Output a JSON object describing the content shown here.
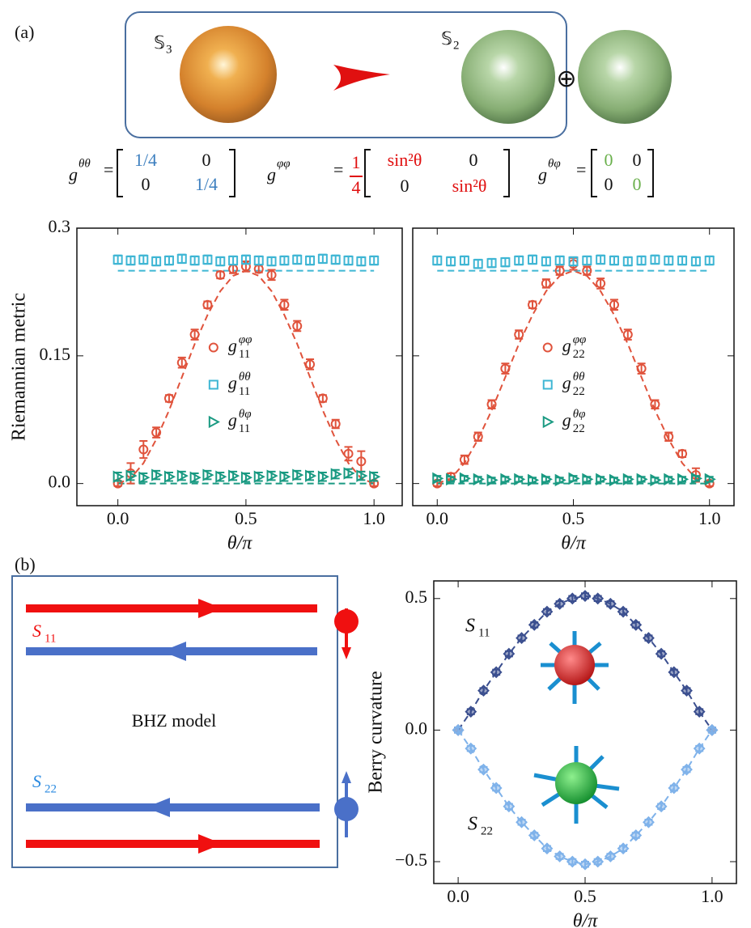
{
  "panel_labels": [
    "(a)",
    "(b)"
  ],
  "spheres": {
    "from": {
      "base": "𝕊",
      "sub": "3"
    },
    "to": {
      "base": "𝕊",
      "sub": "2"
    },
    "plus": "⊕"
  },
  "equations": [
    {
      "symbol": "g",
      "sup": "θθ",
      "equals": "=",
      "matrix": [
        "1/4",
        "0",
        "0",
        "1/4"
      ]
    },
    {
      "symbol": "g",
      "sup": "φφ",
      "equals": "=",
      "prefactor": [
        "1",
        "4"
      ],
      "matrix": [
        "sin²θ",
        "0",
        "0",
        "sin²θ"
      ]
    },
    {
      "symbol": "g",
      "sup": "θφ",
      "equals": "=",
      "matrix": [
        "0",
        "0",
        "0",
        "0"
      ]
    }
  ],
  "bhz": {
    "label": "BHZ model",
    "s11": {
      "base": "S",
      "sub": "11"
    },
    "s22": {
      "base": "S",
      "sub": "22"
    }
  },
  "chart_data": [
    {
      "type": "scatter",
      "ylabel": "Riemannian metric",
      "xlabel": "θ/π",
      "xlim": [
        -0.16,
        1.11
      ],
      "ylim": [
        -0.026,
        0.3
      ],
      "xticks": [
        {
          "value": 0,
          "label": "0.0"
        },
        0.5,
        {
          "value": 1,
          "label": "1.0"
        }
      ],
      "yticks": [
        {
          "value": 0,
          "label": "0.0"
        },
        0.15,
        0.3
      ],
      "legend": "center",
      "x": [
        0,
        0.05,
        0.1,
        0.15,
        0.2,
        0.25,
        0.3,
        0.35,
        0.4,
        0.45,
        0.5,
        0.55,
        0.6,
        0.65,
        0.7,
        0.75,
        0.8,
        0.85,
        0.9,
        0.95,
        1.0
      ],
      "series": [
        {
          "style": "dashed",
          "color": "#e0533c",
          "values": [
            0,
            0.006,
            0.024,
            0.052,
            0.086,
            0.125,
            0.164,
            0.198,
            0.226,
            0.244,
            0.25,
            0.244,
            0.226,
            0.198,
            0.164,
            0.125,
            0.086,
            0.052,
            0.024,
            0.006,
            0
          ]
        },
        {
          "style": "dashed",
          "color": "#3fb6d4",
          "values": [
            0.25,
            0.25,
            0.25,
            0.25,
            0.25,
            0.25,
            0.25,
            0.25,
            0.25,
            0.25,
            0.25,
            0.25,
            0.25,
            0.25,
            0.25,
            0.25,
            0.25,
            0.25,
            0.25,
            0.25,
            0.25
          ]
        },
        {
          "style": "dashed",
          "color": "#1a9a82",
          "values": [
            0,
            0,
            0,
            0,
            0,
            0,
            0,
            0,
            0,
            0,
            0,
            0,
            0,
            0,
            0,
            0,
            0,
            0,
            0,
            0,
            0
          ]
        },
        {
          "name": "g",
          "name_sub": "11",
          "name_sup": "φφ",
          "marker": "circle",
          "color": "#e0533c",
          "values": [
            0,
            0.012,
            0.04,
            0.06,
            0.1,
            0.142,
            0.175,
            0.21,
            0.245,
            0.252,
            0.255,
            0.252,
            0.245,
            0.21,
            0.185,
            0.14,
            0.1,
            0.07,
            0.035,
            0.026,
            0
          ],
          "errors": [
            0.003,
            0.012,
            0.01,
            0.006,
            0.004,
            0.006,
            0.006,
            0.004,
            0.004,
            0.005,
            0.006,
            0.004,
            0.006,
            0.006,
            0.006,
            0.006,
            0.004,
            0.005,
            0.008,
            0.012,
            0.003
          ]
        },
        {
          "name": "g",
          "name_sub": "11",
          "name_sup": "θθ",
          "marker": "square",
          "color": "#3fb6d4",
          "values": [
            0.263,
            0.262,
            0.263,
            0.261,
            0.262,
            0.264,
            0.262,
            0.263,
            0.261,
            0.262,
            0.263,
            0.262,
            0.261,
            0.262,
            0.263,
            0.262,
            0.264,
            0.263,
            0.262,
            0.261,
            0.262
          ],
          "errors": [
            0.005,
            0.005,
            0.005,
            0.005,
            0.005,
            0.005,
            0.005,
            0.005,
            0.005,
            0.005,
            0.005,
            0.005,
            0.005,
            0.005,
            0.005,
            0.005,
            0.005,
            0.005,
            0.005,
            0.005,
            0.005
          ]
        },
        {
          "name": "g",
          "name_sub": "11",
          "name_sup": "θφ",
          "marker": "triangle",
          "color": "#1a9a82",
          "values": [
            0.008,
            0.009,
            0.007,
            0.01,
            0.008,
            0.009,
            0.007,
            0.01,
            0.008,
            0.009,
            0.007,
            0.008,
            0.009,
            0.008,
            0.01,
            0.009,
            0.008,
            0.011,
            0.012,
            0.009,
            0.008
          ],
          "errors": [
            0.005,
            0.005,
            0.005,
            0.005,
            0.005,
            0.005,
            0.005,
            0.005,
            0.005,
            0.005,
            0.005,
            0.005,
            0.005,
            0.005,
            0.005,
            0.005,
            0.005,
            0.005,
            0.005,
            0.005,
            0.005
          ]
        }
      ]
    },
    {
      "type": "scatter",
      "xlabel": "θ/π",
      "xlim": [
        -0.09,
        1.09
      ],
      "ylim": [
        -0.026,
        0.3
      ],
      "xticks": [
        {
          "value": 0,
          "label": "0.0"
        },
        0.5,
        {
          "value": 1,
          "label": "1.0"
        }
      ],
      "yticks": [
        0,
        0.15,
        0.3
      ],
      "ytick_labels": false,
      "legend": "center",
      "x": [
        0,
        0.05,
        0.1,
        0.15,
        0.2,
        0.25,
        0.3,
        0.35,
        0.4,
        0.45,
        0.5,
        0.55,
        0.6,
        0.65,
        0.7,
        0.75,
        0.8,
        0.85,
        0.9,
        0.95,
        1.0
      ],
      "series": [
        {
          "style": "dashed",
          "color": "#e0533c",
          "values": [
            0,
            0.006,
            0.024,
            0.052,
            0.086,
            0.125,
            0.164,
            0.198,
            0.226,
            0.244,
            0.25,
            0.244,
            0.226,
            0.198,
            0.164,
            0.125,
            0.086,
            0.052,
            0.024,
            0.006,
            0
          ]
        },
        {
          "style": "dashed",
          "color": "#3fb6d4",
          "values": [
            0.25,
            0.25,
            0.25,
            0.25,
            0.25,
            0.25,
            0.25,
            0.25,
            0.25,
            0.25,
            0.25,
            0.25,
            0.25,
            0.25,
            0.25,
            0.25,
            0.25,
            0.25,
            0.25,
            0.25,
            0.25
          ]
        },
        {
          "style": "dashed",
          "color": "#1a9a82",
          "values": [
            0,
            0,
            0,
            0,
            0,
            0,
            0,
            0,
            0,
            0,
            0,
            0,
            0,
            0,
            0,
            0,
            0,
            0,
            0,
            0,
            0
          ]
        },
        {
          "name": "g",
          "name_sub": "22",
          "name_sup": "φφ",
          "marker": "circle",
          "color": "#e0533c",
          "values": [
            0,
            0.008,
            0.028,
            0.055,
            0.093,
            0.135,
            0.175,
            0.21,
            0.235,
            0.25,
            0.258,
            0.25,
            0.235,
            0.21,
            0.175,
            0.135,
            0.093,
            0.055,
            0.035,
            0.01,
            0
          ],
          "errors": [
            0.003,
            0.004,
            0.005,
            0.005,
            0.005,
            0.006,
            0.005,
            0.004,
            0.005,
            0.005,
            0.007,
            0.005,
            0.006,
            0.006,
            0.006,
            0.006,
            0.005,
            0.005,
            0.004,
            0.008,
            0.003
          ]
        },
        {
          "name": "g",
          "name_sub": "22",
          "name_sup": "θθ",
          "marker": "square",
          "color": "#3fb6d4",
          "values": [
            0.262,
            0.261,
            0.262,
            0.258,
            0.259,
            0.26,
            0.262,
            0.263,
            0.261,
            0.262,
            0.261,
            0.262,
            0.263,
            0.262,
            0.261,
            0.262,
            0.263,
            0.262,
            0.262,
            0.261,
            0.262
          ],
          "errors": [
            0.005,
            0.005,
            0.005,
            0.005,
            0.005,
            0.005,
            0.005,
            0.005,
            0.005,
            0.005,
            0.005,
            0.005,
            0.005,
            0.005,
            0.005,
            0.005,
            0.005,
            0.005,
            0.005,
            0.005,
            0.005
          ]
        },
        {
          "name": "g",
          "name_sub": "22",
          "name_sup": "θφ",
          "marker": "triangle",
          "color": "#1a9a82",
          "values": [
            0.006,
            0.005,
            0.006,
            0.005,
            0.004,
            0.005,
            0.005,
            0.004,
            0.005,
            0.004,
            0.006,
            0.005,
            0.005,
            0.004,
            0.005,
            0.005,
            0.004,
            0.005,
            0.005,
            0.006,
            0.005
          ],
          "errors": [
            0.003,
            0.003,
            0.003,
            0.003,
            0.003,
            0.003,
            0.003,
            0.003,
            0.003,
            0.003,
            0.003,
            0.003,
            0.003,
            0.003,
            0.003,
            0.003,
            0.003,
            0.003,
            0.003,
            0.003,
            0.003
          ]
        }
      ]
    },
    {
      "type": "scatter",
      "ylabel": "Berry curvature",
      "xlabel": "θ/π",
      "xlim": [
        -0.096,
        1.096
      ],
      "ylim": [
        -0.583,
        0.567
      ],
      "xticks": [
        {
          "value": 0,
          "label": "0.0"
        },
        0.5,
        {
          "value": 1,
          "label": "1.0"
        }
      ],
      "yticks": [
        {
          "value": -0.5,
          "label": "−0.5"
        },
        {
          "value": 0,
          "label": "0.0"
        },
        0.5
      ],
      "x": [
        0,
        0.05,
        0.1,
        0.15,
        0.2,
        0.25,
        0.3,
        0.35,
        0.4,
        0.45,
        0.5,
        0.55,
        0.6,
        0.65,
        0.7,
        0.75,
        0.8,
        0.85,
        0.9,
        0.95,
        1.0
      ],
      "annotations": [
        {
          "text": "S",
          "sub": "11"
        },
        {
          "text": "S",
          "sub": "22"
        }
      ],
      "series": [
        {
          "marker": "diamond",
          "line": "dashed",
          "color": "#3b4f8f",
          "values": [
            0,
            0.07,
            0.15,
            0.22,
            0.29,
            0.35,
            0.4,
            0.45,
            0.48,
            0.5,
            0.51,
            0.5,
            0.48,
            0.45,
            0.4,
            0.35,
            0.29,
            0.22,
            0.15,
            0.07,
            0
          ],
          "errors": [
            0.01,
            0.01,
            0.01,
            0.01,
            0.01,
            0.01,
            0.01,
            0.01,
            0.01,
            0.01,
            0.01,
            0.01,
            0.01,
            0.01,
            0.01,
            0.01,
            0.01,
            0.01,
            0.01,
            0.01,
            0.01
          ]
        },
        {
          "marker": "diamond",
          "line": "dashed",
          "color": "#7fb2ea",
          "values": [
            0,
            -0.07,
            -0.15,
            -0.22,
            -0.29,
            -0.35,
            -0.4,
            -0.45,
            -0.48,
            -0.5,
            -0.51,
            -0.5,
            -0.48,
            -0.45,
            -0.4,
            -0.35,
            -0.29,
            -0.22,
            -0.15,
            -0.07,
            0
          ],
          "errors": [
            0.01,
            0.01,
            0.01,
            0.01,
            0.01,
            0.01,
            0.01,
            0.01,
            0.01,
            0.01,
            0.01,
            0.01,
            0.01,
            0.01,
            0.01,
            0.01,
            0.01,
            0.01,
            0.01,
            0.01,
            0.01
          ]
        }
      ]
    }
  ]
}
